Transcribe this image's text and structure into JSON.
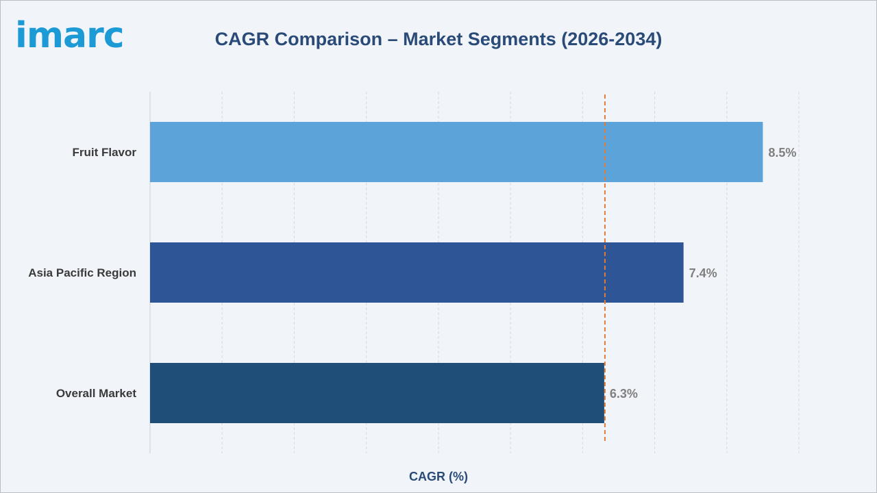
{
  "brand": {
    "logo_text": "imarc"
  },
  "chart_data": {
    "type": "bar",
    "orientation": "horizontal",
    "title": "CAGR Comparison – Market Segments (2026-2034)",
    "xlabel": "CAGR (%)",
    "ylabel": "",
    "categories": [
      "Fruit Flavor",
      "Asia Pacific Region",
      "Overall Market"
    ],
    "values": [
      8.5,
      7.4,
      6.3
    ],
    "value_labels": [
      "8.5%",
      "7.4%",
      "6.3%"
    ],
    "bar_colors": [
      "#5ba3d9",
      "#2e5596",
      "#1f4e79"
    ],
    "xlim": [
      0,
      9
    ],
    "gridlines": true,
    "reference_line": {
      "value": 6.3,
      "style": "dashed",
      "color": "#e07b39"
    }
  }
}
